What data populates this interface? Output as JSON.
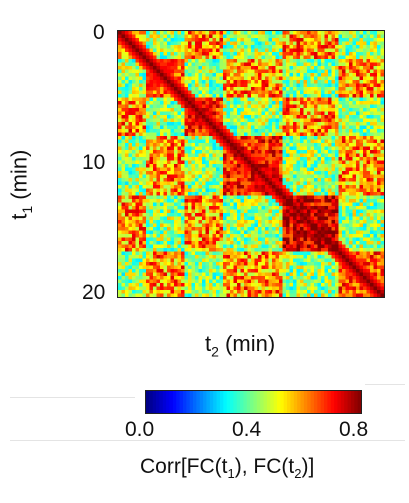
{
  "chart_data": {
    "type": "heatmap",
    "y_ticks": [
      "0",
      "10",
      "20"
    ],
    "y_tick_values": [
      0,
      10,
      20
    ],
    "x_label_var": "t",
    "x_label_sub": "2",
    "x_label_unit": "(min)",
    "y_label_var": "t",
    "y_label_sub": "1",
    "y_label_unit": "(min)",
    "x_range": [
      0,
      20
    ],
    "y_range": [
      0,
      20
    ],
    "y_inverted": true,
    "colorbar": {
      "ticks": [
        "0.0",
        "0.4",
        "0.8"
      ],
      "tick_values": [
        0.0,
        0.4,
        0.8
      ],
      "range": [
        0.0,
        0.8
      ],
      "colormap": "jet",
      "label_prefix": "Corr[FC(t",
      "label_sub1": "1",
      "label_mid": "), FC(t",
      "label_sub2": "2",
      "label_suffix": ")]"
    },
    "blocks": [
      {
        "t_start": 0,
        "t_end": 2,
        "value": 0.55
      },
      {
        "t_start": 2,
        "t_end": 5,
        "value": 0.62
      },
      {
        "t_start": 5,
        "t_end": 8,
        "value": 0.66
      },
      {
        "t_start": 8,
        "t_end": 12.5,
        "value": 0.68
      },
      {
        "t_start": 12.5,
        "t_end": 16.5,
        "value": 0.72
      },
      {
        "t_start": 16.5,
        "t_end": 20,
        "value": 0.64
      }
    ],
    "diagonal_value": 0.8,
    "background_value": 0.42,
    "grid": false
  }
}
